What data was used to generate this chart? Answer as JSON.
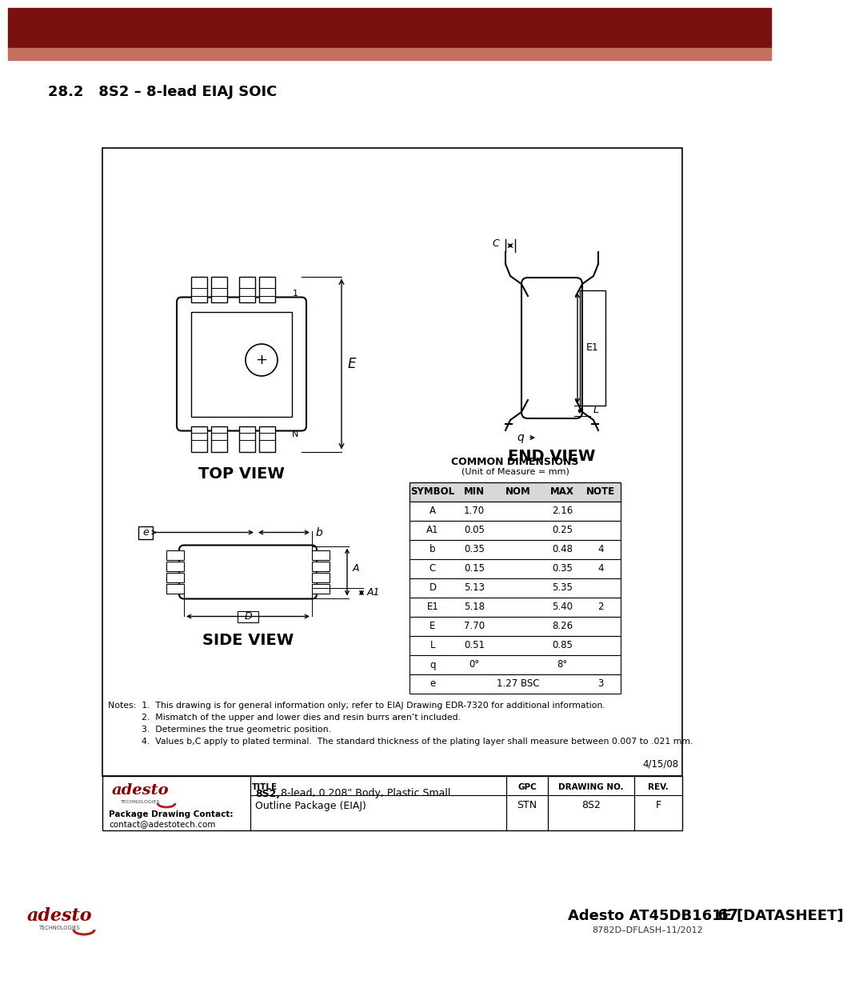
{
  "page_title": "28.2   8S2 – 8-lead EIAJ SOIC",
  "header_dark_color": "#7a1010",
  "header_light_color": "#c47060",
  "bg_color": "#ffffff",
  "table_data": {
    "headers": [
      "SYMBOL",
      "MIN",
      "NOM",
      "MAX",
      "NOTE"
    ],
    "rows": [
      [
        "A",
        "1.70",
        "",
        "2.16",
        ""
      ],
      [
        "A1",
        "0.05",
        "",
        "0.25",
        ""
      ],
      [
        "b",
        "0.35",
        "",
        "0.48",
        "4"
      ],
      [
        "C",
        "0.15",
        "",
        "0.35",
        "4"
      ],
      [
        "D",
        "5.13",
        "",
        "5.35",
        ""
      ],
      [
        "E1",
        "5.18",
        "",
        "5.40",
        "2"
      ],
      [
        "E",
        "7.70",
        "",
        "8.26",
        ""
      ],
      [
        "L",
        "0.51",
        "",
        "0.85",
        ""
      ],
      [
        "q",
        "0°",
        "",
        "8°",
        ""
      ],
      [
        "e",
        "",
        "1.27 BSC",
        "",
        "3"
      ]
    ]
  },
  "notes_lines": [
    "Notes:  1.  This drawing is for general information only; refer to EIAJ Drawing EDR-7320 for additional information.",
    "            2.  Mismatch of the upper and lower dies and resin burrs aren’t included.",
    "            3.  Determines the true geometric position.",
    "            4.  Values b,C apply to plated terminal.  The standard thickness of the plating layer shall measure between 0.007 to .021 mm."
  ],
  "footer_date": "4/15/08",
  "footer_title_bold": "8S2,",
  "footer_title_rest": " 8-lead, 0.208\" Body, Plastic Small\nOutline Package (EIAJ)",
  "footer_gpc": "STN",
  "footer_drawing_no": "8S2",
  "footer_rev": "F",
  "bottom_text": "Adesto AT45DB161E [DATASHEET]",
  "bottom_page": "67",
  "bottom_subtext": "8782D–DFLASH–11/2012"
}
